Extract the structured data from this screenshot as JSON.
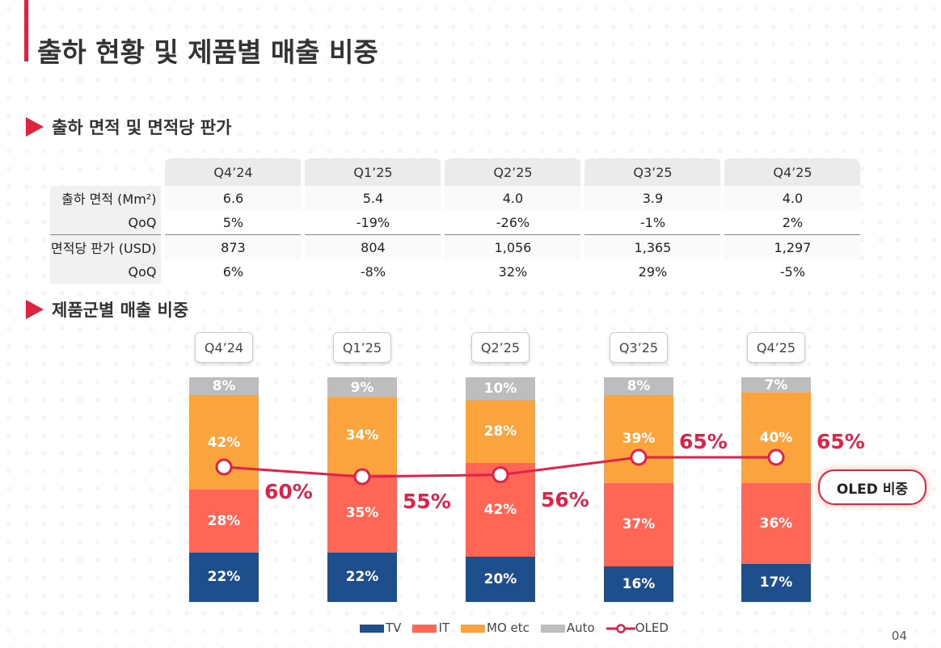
{
  "title": "출하 현황 및 제품별 매출 비중",
  "section1": "출하 면적 및 면적당 판가",
  "section2": "제품군별 매출 비중",
  "table": {
    "headers": [
      "Q4’24",
      "Q1’25",
      "Q2’25",
      "Q3’25",
      "Q4’25"
    ],
    "rows": [
      {
        "label": "출하 면적 (Mm²)",
        "values": [
          "6.6",
          "5.4",
          "4.0",
          "3.9",
          "4.0"
        ]
      },
      {
        "label": "QoQ",
        "values": [
          "5%",
          "-19%",
          "-26%",
          "-1%",
          "2%"
        ]
      },
      {
        "label": "면적당 판가 (USD)",
        "values": [
          "873",
          "804",
          "1,056",
          "1,365",
          "1,297"
        ]
      },
      {
        "label": "QoQ",
        "values": [
          "6%",
          "-8%",
          "32%",
          "29%",
          "-5%"
        ]
      }
    ]
  },
  "chart_data": {
    "type": "bar",
    "stacked": true,
    "categories": [
      "Q4’24",
      "Q1’25",
      "Q2’25",
      "Q3’25",
      "Q4’25"
    ],
    "series": [
      {
        "name": "TV",
        "color": "#1f4e8c",
        "values": [
          22,
          22,
          20,
          16,
          17
        ]
      },
      {
        "name": "IT",
        "color": "#ff6655",
        "values": [
          28,
          35,
          42,
          37,
          36
        ]
      },
      {
        "name": "MO etc",
        "color": "#fba33c",
        "values": [
          42,
          34,
          28,
          39,
          40
        ]
      },
      {
        "name": "Auto",
        "color": "#bdbcbe",
        "values": [
          8,
          9,
          10,
          8,
          7
        ]
      }
    ],
    "line": {
      "name": "OLED",
      "color": "#e0224a",
      "values": [
        60,
        55,
        56,
        65,
        65
      ]
    },
    "badge": "OLED 비중"
  },
  "page_number": "04"
}
